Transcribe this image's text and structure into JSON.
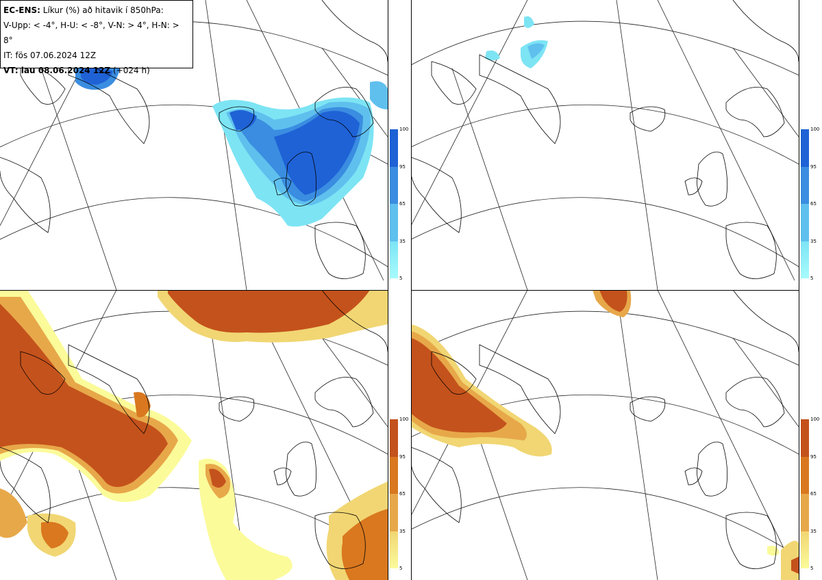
{
  "header": {
    "model": "EC-ENS:",
    "title": " Líkur (%) að hitavik í 850hPa:",
    "thresholds": "V-Upp: < -4°, H-U: < -8°, V-N: > 4°, H-N: > 8°",
    "init_time": "IT: fös 07.06.2024 12Z",
    "valid_label": "VT: lau 08.06.2024 12Z",
    "valid_offset": " (+024 h)"
  },
  "colorbars": {
    "cold": {
      "ticks": [
        "100",
        "95",
        "65",
        "35",
        "5"
      ],
      "colors": [
        "#1f62d6",
        "#3a8de0",
        "#5fc0ee",
        "#7de4f4",
        "#a7fbfd"
      ]
    },
    "warm": {
      "ticks": [
        "100",
        "95",
        "65",
        "35",
        "5"
      ],
      "colors": [
        "#c4521c",
        "#d9781f",
        "#e7a84a",
        "#f1d673",
        "#fbfb9a"
      ]
    }
  },
  "panels": [
    {
      "name": "V-Upp",
      "scheme": "cold"
    },
    {
      "name": "H-U",
      "scheme": "cold"
    },
    {
      "name": "V-N",
      "scheme": "warm"
    },
    {
      "name": "H-N",
      "scheme": "warm"
    }
  ]
}
